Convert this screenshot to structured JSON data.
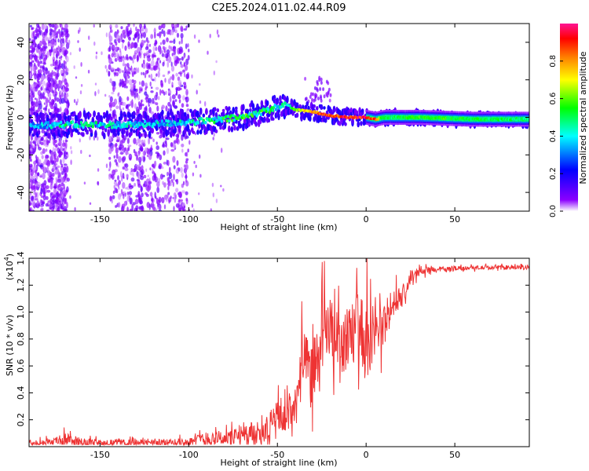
{
  "title": "C2E5.2024.011.02.44.R09",
  "chart_data": [
    {
      "type": "heatmap",
      "name": "spectrogram",
      "xlabel": "Height of straight line (km)",
      "ylabel": "Frequency (Hz)",
      "xlim": [
        -190,
        92
      ],
      "ylim": [
        -50,
        50
      ],
      "xticks": [
        -150,
        -100,
        -50,
        0,
        50
      ],
      "yticks": [
        -40,
        -20,
        0,
        20,
        40
      ],
      "colorbar": {
        "label": "Normalized spectral amplitude",
        "range": [
          0.0,
          1.0
        ],
        "ticks": [
          0.0,
          0.2,
          0.4,
          0.6,
          0.8
        ],
        "colors": [
          "#ffffff",
          "#8b00ff",
          "#0000ff",
          "#00ffff",
          "#00ff00",
          "#ffff00",
          "#ff8000",
          "#ff0000",
          "#ff1493"
        ]
      },
      "ridge": {
        "x": [
          -190,
          -170,
          -150,
          -130,
          -110,
          -90,
          -70,
          -55,
          -45,
          -40,
          -30,
          -25,
          -20,
          -10,
          0,
          5,
          10,
          30,
          60,
          92
        ],
        "freq": [
          -4,
          -4,
          -4,
          -4,
          -3,
          -2,
          0,
          4,
          7,
          4,
          3,
          2,
          1,
          0,
          0,
          -1,
          0,
          0,
          -1,
          -1
        ],
        "level": [
          0.35,
          0.45,
          0.45,
          0.4,
          0.4,
          0.45,
          0.55,
          0.5,
          0.4,
          0.6,
          0.85,
          0.9,
          0.95,
          0.95,
          0.95,
          0.9,
          0.5,
          0.6,
          0.55,
          0.5
        ]
      },
      "scatter_bands": [
        {
          "x_range": [
            -190,
            -168
          ],
          "freq_range": [
            -50,
            50
          ]
        },
        {
          "x_range": [
            -145,
            -100
          ],
          "freq_range": [
            -50,
            50
          ]
        }
      ]
    },
    {
      "type": "line",
      "name": "snr",
      "xlabel": "Height of straight line (km)",
      "ylabel": "SNR (10 * v/v)",
      "scale_label": "(x10",
      "scale_exp": "4",
      "scale_suffix": ")",
      "xlim": [
        -190,
        92
      ],
      "ylim": [
        0,
        14000
      ],
      "xticks": [
        -150,
        -100,
        -50,
        0,
        50
      ],
      "yticks": [
        2000,
        4000,
        6000,
        8000,
        10000,
        12000,
        14000
      ],
      "ytick_labels": [
        "0.2",
        "0.4",
        "0.6",
        "0.8",
        "1.0",
        "1.2",
        "1.4"
      ],
      "color": "#ee3333",
      "envelope": {
        "x": [
          -190,
          -175,
          -170,
          -160,
          -150,
          -120,
          -100,
          -90,
          -75,
          -65,
          -55,
          -48,
          -45,
          -40,
          -38,
          -35,
          -30,
          -25,
          -20,
          -15,
          -10,
          -5,
          0,
          5,
          10,
          15,
          20,
          25,
          30,
          40,
          60,
          92
        ],
        "baseline": [
          300,
          400,
          500,
          350,
          300,
          300,
          350,
          600,
          700,
          900,
          1500,
          2000,
          2200,
          2800,
          5000,
          6000,
          5500,
          7000,
          8500,
          7500,
          8000,
          9000,
          8000,
          8500,
          9000,
          10500,
          11000,
          12500,
          13000,
          13200,
          13300,
          13300
        ],
        "spread": [
          300,
          500,
          900,
          500,
          400,
          400,
          500,
          900,
          1000,
          1500,
          2000,
          2500,
          2000,
          3000,
          3500,
          4000,
          4000,
          4500,
          4000,
          4000,
          4000,
          4500,
          4000,
          3500,
          3000,
          2000,
          1500,
          800,
          500,
          300,
          250,
          250
        ]
      }
    }
  ]
}
